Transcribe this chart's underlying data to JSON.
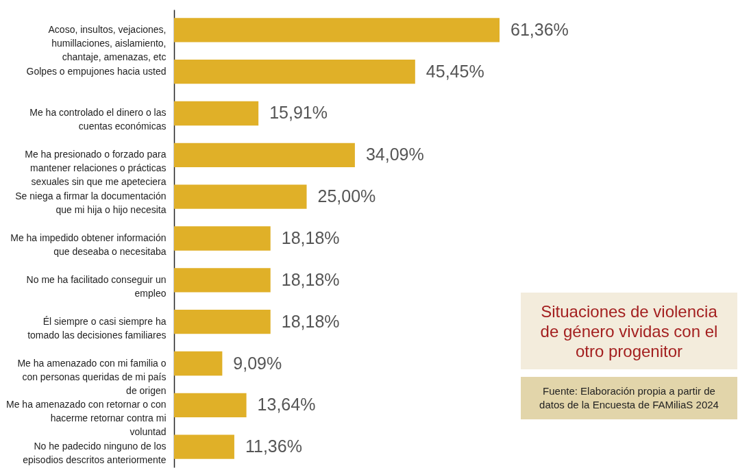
{
  "chart_data": {
    "type": "bar",
    "orientation": "horizontal",
    "title": "Situaciones de violencia de género vividas con el otro progenitor",
    "categories": [
      "Acoso, insultos, vejaciones, humillaciones, aislamiento, chantaje, amenazas, etc",
      "Golpes o empujones hacia usted",
      "Me ha controlado el dinero o las cuentas económicas",
      "Me ha presionado o forzado para mantener relaciones o prácticas sexuales sin que me apeteciera",
      "Se niega a firmar la documentación que mi hija o hijo necesita",
      "Me ha impedido obtener información que deseaba o necesitaba",
      "No me ha facilitado conseguir un empleo",
      "Él siempre o casi siempre ha tomado las decisiones familiares",
      "Me ha amenazado con mi familia o con personas queridas de mi país de origen",
      "Me ha amenazado con retornar o con hacerme retornar contra mi voluntad",
      "No he padecido ninguno de los episodios descritos anteriormente"
    ],
    "values": [
      61.36,
      45.45,
      15.91,
      34.09,
      25.0,
      18.18,
      18.18,
      18.18,
      9.09,
      13.64,
      11.36
    ],
    "value_labels": [
      "61,36%",
      "45,45%",
      "15,91%",
      "34,09%",
      "25,00%",
      "18,18%",
      "18,18%",
      "18,18%",
      "9,09%",
      "13,64%",
      "11,36%"
    ],
    "color": "#e0b028",
    "annotations": [
      "Fuente: Elaboración propia a partir de datos de la Encuesta de FAMiliaS 2024"
    ]
  }
}
